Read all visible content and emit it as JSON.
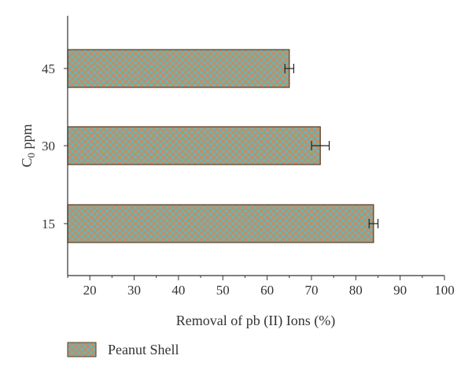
{
  "chart_data": {
    "type": "bar",
    "orientation": "horizontal",
    "categories": [
      "15",
      "30",
      "45"
    ],
    "series": [
      {
        "name": "Peanut Shell",
        "values": [
          84,
          72,
          65
        ],
        "errors": [
          1,
          2,
          1
        ]
      }
    ],
    "xlabel": "Removal of pb (II) Ions (%)",
    "ylabel": {
      "main": "C",
      "sub": "0",
      "unit": " ppm"
    },
    "xlim": [
      15,
      100
    ],
    "xticks": [
      "20",
      "30",
      "40",
      "50",
      "60",
      "70",
      "80",
      "90",
      "100"
    ],
    "grid": false,
    "legend_position": "bottom-left",
    "colors": {
      "bar_fill": "#6fb3b0",
      "bar_hatch": "#c98a5e",
      "bar_edge": "#5a3a22",
      "axis": "#333333"
    }
  }
}
